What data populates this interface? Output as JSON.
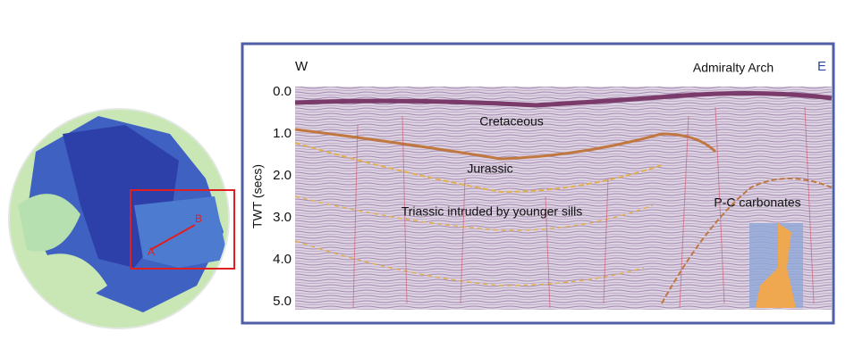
{
  "map": {
    "labels": [
      "A",
      "B"
    ]
  },
  "section": {
    "west": "W",
    "east": "E",
    "feature": "Admiralty Arch",
    "y_axis_label": "TWT (secs)",
    "y_ticks": [
      "0.0",
      "1.0",
      "2.0",
      "3.0",
      "4.0",
      "5.0"
    ],
    "units": [
      "Cretaceous",
      "Jurassic",
      "Triassic intruded by younger sills",
      "P-C carbonates"
    ]
  }
}
